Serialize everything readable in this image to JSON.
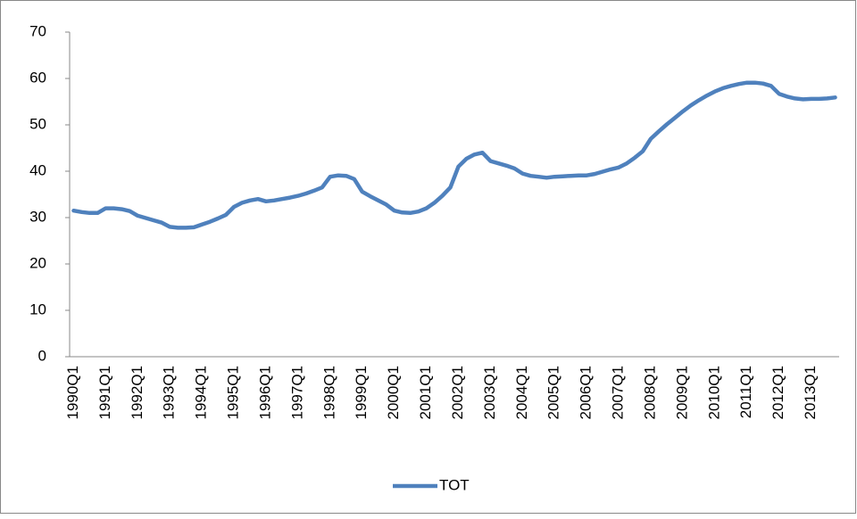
{
  "chart_data": {
    "type": "line",
    "categories": [
      "1990Q1",
      null,
      null,
      null,
      "1991Q1",
      null,
      null,
      null,
      "1992Q1",
      null,
      null,
      null,
      "1993Q1",
      null,
      null,
      null,
      "1994Q1",
      null,
      null,
      null,
      "1995Q1",
      null,
      null,
      null,
      "1996Q1",
      null,
      null,
      null,
      "1997Q1",
      null,
      null,
      null,
      "1998Q1",
      null,
      null,
      null,
      "1999Q1",
      null,
      null,
      null,
      "2000Q1",
      null,
      null,
      null,
      "2001Q1",
      null,
      null,
      null,
      "2002Q1",
      null,
      null,
      null,
      "2003Q1",
      null,
      null,
      null,
      "2004Q1",
      null,
      null,
      null,
      "2005Q1",
      null,
      null,
      null,
      "2006Q1",
      null,
      null,
      null,
      "2007Q1",
      null,
      null,
      null,
      "2008Q1",
      null,
      null,
      null,
      "2009Q1",
      null,
      null,
      null,
      "2010Q1",
      null,
      null,
      null,
      "2011Q1",
      null,
      null,
      null,
      "2012Q1",
      null,
      null,
      null,
      "2013Q1",
      null,
      null,
      null
    ],
    "series": [
      {
        "name": "TOT",
        "color": "#4f81bd",
        "values": [
          31.5,
          31.2,
          31.0,
          31.0,
          32.0,
          32.0,
          31.8,
          31.4,
          30.4,
          29.9,
          29.4,
          28.9,
          28.0,
          27.8,
          27.8,
          27.9,
          28.5,
          29.1,
          29.8,
          30.6,
          32.3,
          33.2,
          33.7,
          34.0,
          33.5,
          33.7,
          34.0,
          34.3,
          34.7,
          35.2,
          35.8,
          36.5,
          38.8,
          39.1,
          39.0,
          38.3,
          35.6,
          34.6,
          33.7,
          32.8,
          31.5,
          31.1,
          31.0,
          31.3,
          32.0,
          33.2,
          34.7,
          36.5,
          41.0,
          42.7,
          43.6,
          44.0,
          42.2,
          41.7,
          41.2,
          40.6,
          39.5,
          39.0,
          38.8,
          38.6,
          38.8,
          38.9,
          39.0,
          39.1,
          39.1,
          39.4,
          39.9,
          40.4,
          40.8,
          41.7,
          42.9,
          44.3,
          47.0,
          48.6,
          50.1,
          51.5,
          52.9,
          54.2,
          55.3,
          56.3,
          57.2,
          57.9,
          58.4,
          58.8,
          59.1,
          59.1,
          58.9,
          58.4,
          56.7,
          56.1,
          55.7,
          55.5,
          55.6,
          55.6,
          55.7,
          55.9
        ]
      }
    ],
    "ylim": [
      0,
      70
    ],
    "yticks": [
      0,
      10,
      20,
      30,
      40,
      50,
      60,
      70
    ],
    "grid": false,
    "legend": "bottom"
  }
}
